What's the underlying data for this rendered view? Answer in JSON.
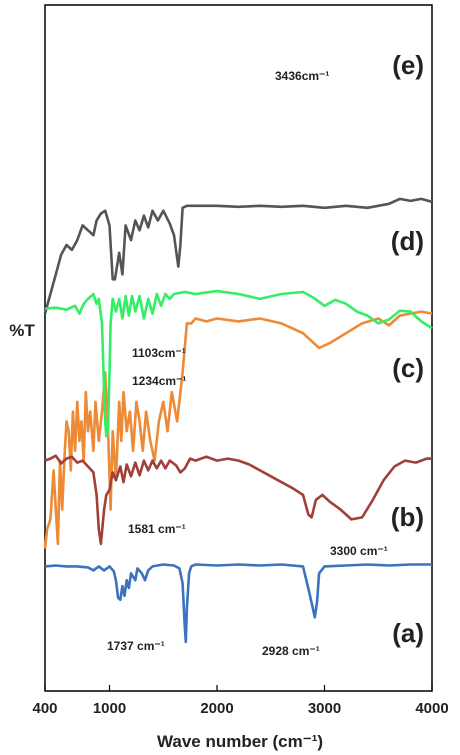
{
  "chart_data": {
    "type": "line",
    "xlabel": "Wave number (cm⁻¹)",
    "ylabel": "%T",
    "xlim": [
      400,
      4000
    ],
    "x_ticks": [
      "400",
      "1000",
      "2000",
      "3000",
      "4000"
    ],
    "grid": false,
    "legend": "inline labels at right of each trace",
    "series": [
      {
        "name": "(e)",
        "color": "#ee8a35",
        "offset": 620,
        "points": [
          [
            400,
            560
          ],
          [
            420,
            540
          ],
          [
            450,
            530
          ],
          [
            480,
            480
          ],
          [
            500,
            520
          ],
          [
            520,
            555
          ],
          [
            540,
            470
          ],
          [
            560,
            520
          ],
          [
            580,
            470
          ],
          [
            600,
            430
          ],
          [
            620,
            440
          ],
          [
            640,
            480
          ],
          [
            660,
            420
          ],
          [
            680,
            460
          ],
          [
            700,
            410
          ],
          [
            720,
            450
          ],
          [
            740,
            430
          ],
          [
            760,
            470
          ],
          [
            780,
            400
          ],
          [
            800,
            440
          ],
          [
            820,
            420
          ],
          [
            850,
            460
          ],
          [
            870,
            410
          ],
          [
            900,
            450
          ],
          [
            930,
            420
          ],
          [
            960,
            380
          ],
          [
            990,
            450
          ],
          [
            1010,
            520
          ],
          [
            1030,
            440
          ],
          [
            1060,
            490
          ],
          [
            1090,
            410
          ],
          [
            1110,
            450
          ],
          [
            1130,
            400
          ],
          [
            1160,
            440
          ],
          [
            1190,
            420
          ],
          [
            1220,
            460
          ],
          [
            1250,
            410
          ],
          [
            1280,
            430
          ],
          [
            1310,
            460
          ],
          [
            1340,
            420
          ],
          [
            1380,
            450
          ],
          [
            1420,
            470
          ],
          [
            1460,
            430
          ],
          [
            1500,
            410
          ],
          [
            1540,
            440
          ],
          [
            1580,
            400
          ],
          [
            1630,
            430
          ],
          [
            1680,
            380
          ],
          [
            1720,
            330
          ],
          [
            1760,
            330
          ],
          [
            1800,
            325
          ],
          [
            1900,
            328
          ],
          [
            2000,
            325
          ],
          [
            2200,
            328
          ],
          [
            2400,
            325
          ],
          [
            2600,
            330
          ],
          [
            2800,
            340
          ],
          [
            2950,
            355
          ],
          [
            3050,
            350
          ],
          [
            3200,
            340
          ],
          [
            3350,
            330
          ],
          [
            3500,
            325
          ],
          [
            3600,
            332
          ],
          [
            3700,
            322
          ],
          [
            3800,
            320
          ],
          [
            3900,
            318
          ],
          [
            4000,
            320
          ]
        ]
      },
      {
        "name": "(d)",
        "color": "#555555",
        "offset": 450,
        "points": [
          [
            400,
            320
          ],
          [
            450,
            300
          ],
          [
            500,
            280
          ],
          [
            550,
            260
          ],
          [
            600,
            250
          ],
          [
            650,
            255
          ],
          [
            700,
            245
          ],
          [
            750,
            230
          ],
          [
            800,
            235
          ],
          [
            850,
            240
          ],
          [
            880,
            225
          ],
          [
            920,
            218
          ],
          [
            960,
            215
          ],
          [
            1000,
            230
          ],
          [
            1030,
            285
          ],
          [
            1050,
            285
          ],
          [
            1090,
            258
          ],
          [
            1120,
            280
          ],
          [
            1150,
            230
          ],
          [
            1200,
            245
          ],
          [
            1240,
            225
          ],
          [
            1280,
            235
          ],
          [
            1320,
            220
          ],
          [
            1360,
            232
          ],
          [
            1400,
            215
          ],
          [
            1450,
            225
          ],
          [
            1500,
            215
          ],
          [
            1560,
            228
          ],
          [
            1600,
            240
          ],
          [
            1640,
            272
          ],
          [
            1660,
            250
          ],
          [
            1680,
            212
          ],
          [
            1720,
            210
          ],
          [
            1800,
            210
          ],
          [
            2000,
            210
          ],
          [
            2200,
            211
          ],
          [
            2400,
            210
          ],
          [
            2600,
            211
          ],
          [
            2800,
            210
          ],
          [
            3000,
            212
          ],
          [
            3200,
            210
          ],
          [
            3400,
            212
          ],
          [
            3500,
            210
          ],
          [
            3600,
            208
          ],
          [
            3700,
            203
          ],
          [
            3800,
            205
          ],
          [
            3900,
            203
          ],
          [
            4000,
            206
          ]
        ]
      },
      {
        "name": "(c)",
        "color": "#33ee66",
        "offset": 300,
        "points": [
          [
            400,
            315
          ],
          [
            500,
            314
          ],
          [
            600,
            316
          ],
          [
            680,
            312
          ],
          [
            720,
            320
          ],
          [
            760,
            310
          ],
          [
            800,
            305
          ],
          [
            850,
            300
          ],
          [
            880,
            310
          ],
          [
            900,
            305
          ],
          [
            930,
            330
          ],
          [
            950,
            400
          ],
          [
            960,
            430
          ],
          [
            970,
            445
          ],
          [
            985,
            440
          ],
          [
            1000,
            380
          ],
          [
            1010,
            330
          ],
          [
            1030,
            305
          ],
          [
            1060,
            318
          ],
          [
            1090,
            305
          ],
          [
            1120,
            325
          ],
          [
            1150,
            302
          ],
          [
            1180,
            322
          ],
          [
            1210,
            302
          ],
          [
            1240,
            318
          ],
          [
            1280,
            302
          ],
          [
            1320,
            325
          ],
          [
            1360,
            305
          ],
          [
            1400,
            320
          ],
          [
            1440,
            300
          ],
          [
            1480,
            312
          ],
          [
            1520,
            300
          ],
          [
            1560,
            305
          ],
          [
            1600,
            300
          ],
          [
            1700,
            298
          ],
          [
            1800,
            300
          ],
          [
            2000,
            297
          ],
          [
            2200,
            300
          ],
          [
            2400,
            305
          ],
          [
            2600,
            300
          ],
          [
            2800,
            298
          ],
          [
            2900,
            304
          ],
          [
            3000,
            312
          ],
          [
            3100,
            306
          ],
          [
            3200,
            310
          ],
          [
            3300,
            318
          ],
          [
            3400,
            322
          ],
          [
            3500,
            330
          ],
          [
            3600,
            326
          ],
          [
            3700,
            317
          ],
          [
            3800,
            318
          ],
          [
            3900,
            328
          ],
          [
            4000,
            335
          ]
        ]
      },
      {
        "name": "(b)",
        "color": "#a0403a",
        "offset": 150,
        "points": [
          [
            400,
            470
          ],
          [
            450,
            468
          ],
          [
            500,
            465
          ],
          [
            550,
            473
          ],
          [
            600,
            468
          ],
          [
            650,
            466
          ],
          [
            700,
            472
          ],
          [
            750,
            470
          ],
          [
            800,
            476
          ],
          [
            850,
            482
          ],
          [
            880,
            505
          ],
          [
            900,
            540
          ],
          [
            920,
            555
          ],
          [
            950,
            520
          ],
          [
            970,
            505
          ],
          [
            1000,
            500
          ],
          [
            1030,
            482
          ],
          [
            1060,
            490
          ],
          [
            1100,
            476
          ],
          [
            1130,
            492
          ],
          [
            1160,
            474
          ],
          [
            1200,
            486
          ],
          [
            1240,
            472
          ],
          [
            1280,
            485
          ],
          [
            1320,
            470
          ],
          [
            1360,
            480
          ],
          [
            1400,
            470
          ],
          [
            1440,
            478
          ],
          [
            1480,
            470
          ],
          [
            1520,
            478
          ],
          [
            1560,
            470
          ],
          [
            1620,
            475
          ],
          [
            1660,
            482
          ],
          [
            1700,
            478
          ],
          [
            1750,
            468
          ],
          [
            1800,
            470
          ],
          [
            1900,
            466
          ],
          [
            2000,
            470
          ],
          [
            2100,
            468
          ],
          [
            2200,
            470
          ],
          [
            2300,
            474
          ],
          [
            2400,
            480
          ],
          [
            2500,
            486
          ],
          [
            2600,
            492
          ],
          [
            2700,
            498
          ],
          [
            2800,
            505
          ],
          [
            2850,
            525
          ],
          [
            2880,
            528
          ],
          [
            2920,
            510
          ],
          [
            2980,
            505
          ],
          [
            3050,
            512
          ],
          [
            3150,
            520
          ],
          [
            3250,
            530
          ],
          [
            3350,
            528
          ],
          [
            3450,
            510
          ],
          [
            3550,
            490
          ],
          [
            3650,
            476
          ],
          [
            3750,
            470
          ],
          [
            3850,
            472
          ],
          [
            3950,
            468
          ],
          [
            4000,
            468
          ]
        ]
      },
      {
        "name": "(a)",
        "color": "#3b74bd",
        "offset": 0,
        "points": [
          [
            400,
            578
          ],
          [
            500,
            577
          ],
          [
            600,
            578
          ],
          [
            700,
            578
          ],
          [
            800,
            579
          ],
          [
            850,
            582
          ],
          [
            900,
            578
          ],
          [
            950,
            582
          ],
          [
            1000,
            578
          ],
          [
            1040,
            583
          ],
          [
            1060,
            592
          ],
          [
            1080,
            610
          ],
          [
            1100,
            612
          ],
          [
            1120,
            598
          ],
          [
            1140,
            608
          ],
          [
            1160,
            592
          ],
          [
            1180,
            600
          ],
          [
            1200,
            585
          ],
          [
            1240,
            592
          ],
          [
            1260,
            580
          ],
          [
            1300,
            585
          ],
          [
            1330,
            592
          ],
          [
            1360,
            582
          ],
          [
            1400,
            578
          ],
          [
            1500,
            576
          ],
          [
            1600,
            577
          ],
          [
            1650,
            580
          ],
          [
            1680,
            595
          ],
          [
            1700,
            640
          ],
          [
            1710,
            655
          ],
          [
            1720,
            620
          ],
          [
            1740,
            585
          ],
          [
            1760,
            578
          ],
          [
            1800,
            576
          ],
          [
            2000,
            577
          ],
          [
            2200,
            576
          ],
          [
            2400,
            577
          ],
          [
            2600,
            576
          ],
          [
            2800,
            578
          ],
          [
            2860,
            605
          ],
          [
            2890,
            620
          ],
          [
            2910,
            630
          ],
          [
            2930,
            615
          ],
          [
            2950,
            585
          ],
          [
            3000,
            578
          ],
          [
            3200,
            577
          ],
          [
            3400,
            576
          ],
          [
            3600,
            577
          ],
          [
            3800,
            576
          ],
          [
            4000,
            576
          ]
        ]
      }
    ],
    "series_labels": [
      "(e)",
      "(d)",
      "(c)",
      "(b)",
      "(a)"
    ],
    "annotations": [
      "3436cm⁻¹",
      "1103cm⁻¹",
      "1234cm⁻¹",
      "1581 cm⁻¹",
      "3300 cm⁻¹",
      "1737 cm⁻¹",
      "2928 cm⁻¹"
    ]
  }
}
